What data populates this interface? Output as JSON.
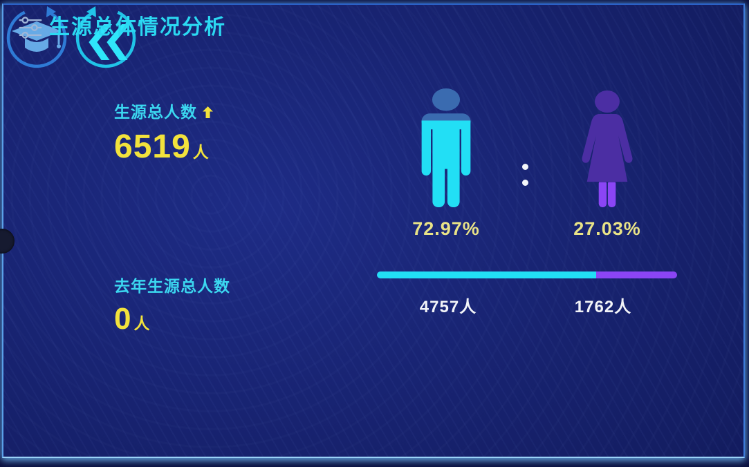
{
  "header": {
    "title": "生源总体情况分析"
  },
  "kpis": [
    {
      "icon": "graduation-cap-icon",
      "label": "生源总人数",
      "trend": "up",
      "value": "6519",
      "unit": "人"
    },
    {
      "icon": "rewind-icon",
      "label": "去年生源总人数",
      "value": "0",
      "unit": "人"
    }
  ],
  "chart_data": {
    "type": "bar",
    "subtype": "gender-ratio-pictorial",
    "title": "生源总体情况分析",
    "separator": ":",
    "grid": false,
    "legend_position": "none",
    "series": [
      {
        "name": "male",
        "percent": 72.97,
        "percent_label": "72.97%",
        "count": 4757,
        "count_label": "4757人",
        "color": "#22DFF5",
        "base_color": "#3A6BB0"
      },
      {
        "name": "female",
        "percent": 27.03,
        "percent_label": "27.03%",
        "count": 1762,
        "count_label": "1762人",
        "color": "#8B45F5",
        "base_color": "#4B2EA3"
      }
    ],
    "kpi_values": [
      {
        "label": "生源总人数",
        "value": 6519,
        "unit": "人",
        "trend": "up"
      },
      {
        "label": "去年生源总人数",
        "value": 0,
        "unit": "人"
      }
    ]
  },
  "colors": {
    "background": "#17226E",
    "panel_border": "#3C7AD8",
    "panel_border_bottom": "#9AD2F8",
    "title_text": "#2BD9F2",
    "label_text": "#3BD7F0",
    "value_text": "#F2E23C",
    "percent_text": "#E9E387",
    "count_text": "#F2F4F8",
    "circle_icon_blue": "#2E7BD6",
    "circle_icon_cyan": "#1FC4E8"
  }
}
